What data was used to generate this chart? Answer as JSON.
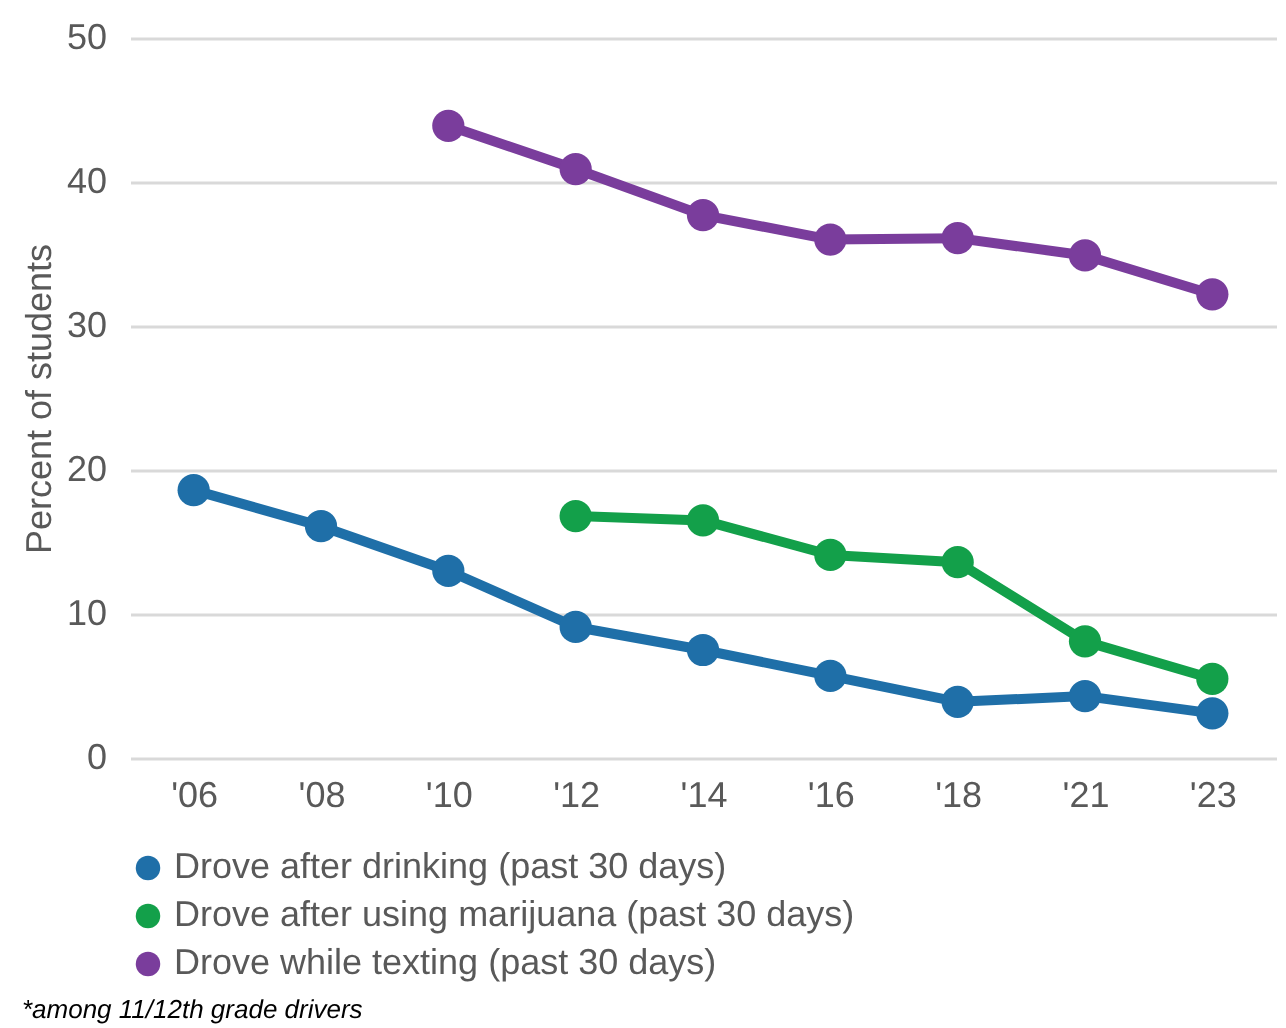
{
  "chart_data": {
    "type": "line",
    "ylabel": "Percent of students",
    "categories": [
      "'06",
      "'08",
      "'10",
      "'12",
      "'14",
      "'16",
      "'18",
      "'21",
      "'23"
    ],
    "series": [
      {
        "name": "Drove after drinking (past 30 days)",
        "color": "#1f6fa8",
        "values": [
          18.6,
          16.1,
          13.0,
          9.1,
          7.5,
          5.7,
          3.9,
          4.3,
          3.1
        ]
      },
      {
        "name": "Drove after using marijuana (past 30 days)",
        "color": "#13a04a",
        "values": [
          null,
          null,
          null,
          16.8,
          16.5,
          14.1,
          13.6,
          8.1,
          5.5
        ]
      },
      {
        "name": "Drove while texting (past 30 days)",
        "color": "#7a3d9c",
        "values": [
          null,
          null,
          43.9,
          40.9,
          37.7,
          36.0,
          36.1,
          34.9,
          32.2
        ]
      }
    ],
    "ylim": [
      0,
      50
    ],
    "yticks": [
      0,
      10,
      20,
      30,
      40,
      50
    ],
    "grid": "y",
    "legend": "bottom",
    "marker": "circle",
    "line_style": "solid",
    "annotations": [
      "*among 11/12th grade drivers"
    ]
  }
}
